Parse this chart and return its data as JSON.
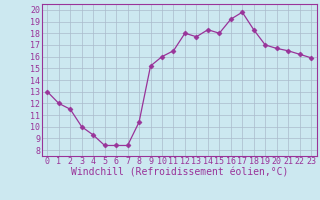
{
  "x": [
    0,
    1,
    2,
    3,
    4,
    5,
    6,
    7,
    8,
    9,
    10,
    11,
    12,
    13,
    14,
    15,
    16,
    17,
    18,
    19,
    20,
    21,
    22,
    23
  ],
  "y": [
    13,
    12,
    11.5,
    10,
    9.3,
    8.4,
    8.4,
    8.4,
    10.4,
    15.2,
    16.0,
    16.5,
    18.0,
    17.7,
    18.3,
    18.0,
    19.2,
    19.8,
    18.3,
    17.0,
    16.7,
    16.5,
    16.2,
    15.9
  ],
  "line_color": "#993399",
  "marker": "D",
  "marker_size": 2.5,
  "bg_color": "#cce8f0",
  "grid_color": "#aabbcc",
  "xlabel": "Windchill (Refroidissement éolien,°C)",
  "xlabel_fontsize": 7.0,
  "tick_fontsize": 6.0,
  "xlim": [
    -0.5,
    23.5
  ],
  "ylim": [
    7.5,
    20.5
  ],
  "yticks": [
    8,
    9,
    10,
    11,
    12,
    13,
    14,
    15,
    16,
    17,
    18,
    19,
    20
  ],
  "xticks": [
    0,
    1,
    2,
    3,
    4,
    5,
    6,
    7,
    8,
    9,
    10,
    11,
    12,
    13,
    14,
    15,
    16,
    17,
    18,
    19,
    20,
    21,
    22,
    23
  ]
}
